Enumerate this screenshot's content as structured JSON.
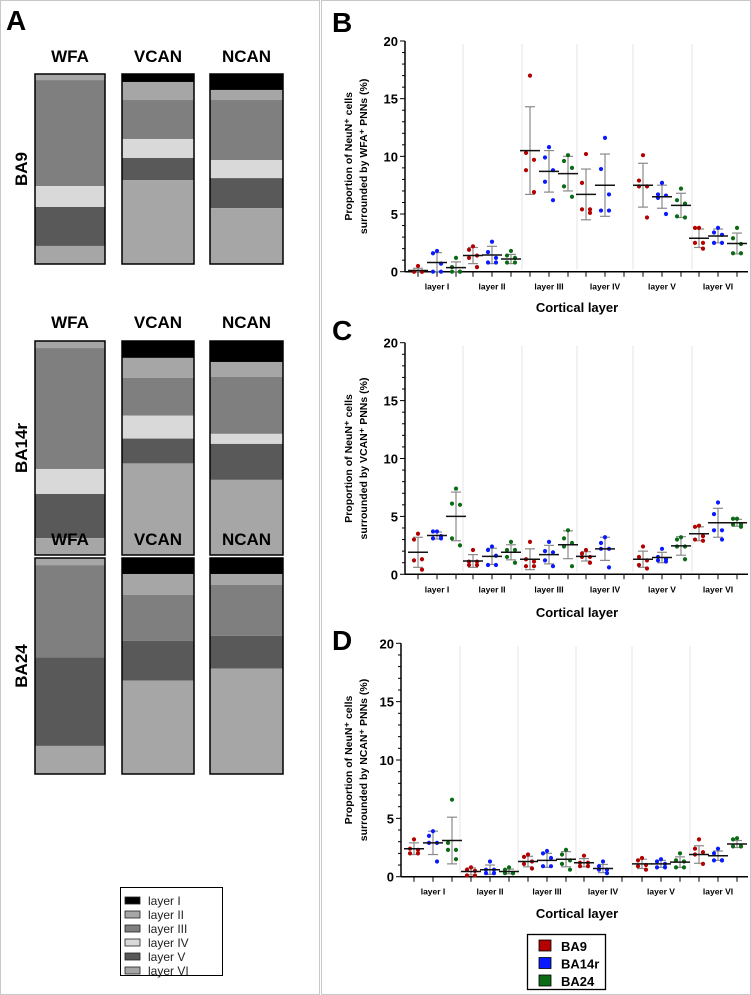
{
  "panel_a": {
    "label": "A",
    "regions": [
      {
        "name": "BA9",
        "stains": [
          {
            "name": "WFA",
            "layers": [
              [
                "layer II",
                3.2
              ],
              [
                "layer III",
                55.8
              ],
              [
                "layer IV",
                11.0
              ],
              [
                "layer V",
                20.5
              ],
              [
                "layer VI",
                9.5
              ]
            ]
          },
          {
            "name": "VCAN",
            "layers": [
              [
                "layer I",
                4.2
              ],
              [
                "layer II",
                9.5
              ],
              [
                "layer III",
                20.5
              ],
              [
                "layer IV",
                10.0
              ],
              [
                "layer V",
                11.6
              ],
              [
                "layer VI",
                44.2
              ]
            ]
          },
          {
            "name": "NCAN",
            "layers": [
              [
                "layer I",
                8.4
              ],
              [
                "layer II",
                5.3
              ],
              [
                "layer III",
                31.6
              ],
              [
                "layer IV",
                9.5
              ],
              [
                "layer V",
                15.8
              ],
              [
                "layer VI",
                29.4
              ]
            ]
          }
        ]
      },
      {
        "name": "BA14r",
        "stains": [
          {
            "name": "WFA",
            "layers": [
              [
                "layer II",
                3.3
              ],
              [
                "layer III",
                56.5
              ],
              [
                "layer IV",
                11.7
              ],
              [
                "layer V",
                20.6
              ],
              [
                "layer VI",
                7.9
              ]
            ]
          },
          {
            "name": "VCAN",
            "layers": [
              [
                "layer I",
                7.9
              ],
              [
                "layer II",
                9.3
              ],
              [
                "layer III",
                17.7
              ],
              [
                "layer IV",
                10.7
              ],
              [
                "layer V",
                11.6
              ],
              [
                "layer VI",
                42.8
              ]
            ]
          },
          {
            "name": "NCAN",
            "layers": [
              [
                "layer I",
                9.8
              ],
              [
                "layer II",
                7.0
              ],
              [
                "layer III",
                26.6
              ],
              [
                "layer IV",
                4.7
              ],
              [
                "layer V",
                16.8
              ],
              [
                "layer VI",
                35.1
              ]
            ]
          }
        ]
      },
      {
        "name": "BA24",
        "stains": [
          {
            "name": "WFA",
            "layers": [
              [
                "layer II",
                3.3
              ],
              [
                "layer III",
                42.8
              ],
              [
                "layer V",
                40.9
              ],
              [
                "layer VI",
                13.0
              ]
            ]
          },
          {
            "name": "VCAN",
            "layers": [
              [
                "layer I",
                7.4
              ],
              [
                "layer II",
                9.7
              ],
              [
                "layer III",
                21.2
              ],
              [
                "layer V",
                18.4
              ],
              [
                "layer VI",
                43.3
              ]
            ]
          },
          {
            "name": "NCAN",
            "layers": [
              [
                "layer I",
                7.4
              ],
              [
                "layer II",
                5.1
              ],
              [
                "layer III",
                23.5
              ],
              [
                "layer V",
                15.2
              ],
              [
                "layer VI",
                48.8
              ]
            ]
          }
        ]
      }
    ],
    "legend": [
      {
        "label": "layer I",
        "color": "#000000"
      },
      {
        "label": "layer II",
        "color": "#a6a6a6"
      },
      {
        "label": "layer III",
        "color": "#7f7f7f"
      },
      {
        "label": "layer IV",
        "color": "#d9d9d9"
      },
      {
        "label": "layer V",
        "color": "#595959"
      },
      {
        "label": "layer VI",
        "color": "#a6a6a6"
      }
    ]
  },
  "legend_regions": [
    {
      "label": "BA9",
      "color": "#b30000"
    },
    {
      "label": "BA14r",
      "color": "#0a1aff"
    },
    {
      "label": "BA24",
      "color": "#0a6b14"
    }
  ],
  "chart_data": [
    {
      "panel": "B",
      "type": "scatter",
      "ylabel_line1": "Proportion of NeuN⁺ cells",
      "ylabel_line2": "surrounded by WFA⁺ PNNs (%)",
      "xlabel": "Cortical layer",
      "categories": [
        "layer I",
        "layer II",
        "layer III",
        "layer IV",
        "layer V",
        "layer VI"
      ],
      "ylim": [
        0,
        20
      ],
      "yticks": [
        0,
        5,
        10,
        15,
        20
      ],
      "series": [
        {
          "name": "BA9",
          "groups": [
            {
              "mean": 0.1,
              "sd": 0.2,
              "points": [
                0.5,
                0,
                0,
                0,
                0
              ]
            },
            {
              "mean": 1.4,
              "sd": 0.7,
              "points": [
                2.2,
                1.9,
                1.4,
                1.2,
                0.4
              ]
            },
            {
              "mean": 10.5,
              "sd": 3.8,
              "points": [
                17,
                10.3,
                9.7,
                8.8,
                6.9
              ]
            },
            {
              "mean": 6.7,
              "sd": 2.2,
              "points": [
                10.2,
                7.7,
                5.4,
                5.4,
                5.1
              ]
            },
            {
              "mean": 7.5,
              "sd": 1.9,
              "points": [
                10.1,
                7.9,
                7.4,
                7.4,
                4.7
              ]
            },
            {
              "mean": 2.9,
              "sd": 0.8,
              "points": [
                3.8,
                3.8,
                2.5,
                2.5,
                2.0
              ]
            }
          ]
        },
        {
          "name": "BA14r",
          "groups": [
            {
              "mean": 0.8,
              "sd": 0.85,
              "points": [
                1.8,
                1.6,
                0.7,
                0,
                0
              ]
            },
            {
              "mean": 1.45,
              "sd": 0.75,
              "points": [
                2.6,
                1.7,
                1.2,
                0.8,
                0.8
              ]
            },
            {
              "mean": 8.7,
              "sd": 1.8,
              "points": [
                10.8,
                9.9,
                8.8,
                7.8,
                6.2
              ]
            },
            {
              "mean": 7.5,
              "sd": 2.7,
              "points": [
                11.6,
                8.9,
                6.7,
                5.3,
                5.3
              ]
            },
            {
              "mean": 6.5,
              "sd": 1.0,
              "points": [
                7.7,
                6.7,
                6.6,
                6.4,
                5.0
              ]
            },
            {
              "mean": 3.1,
              "sd": 0.6,
              "points": [
                3.8,
                3.4,
                3.2,
                2.5,
                2.5
              ]
            }
          ]
        },
        {
          "name": "BA24",
          "groups": [
            {
              "mean": 0.35,
              "sd": 0.5,
              "points": [
                1.2,
                0.4,
                0,
                0,
                0
              ]
            },
            {
              "mean": 1.1,
              "sd": 0.4,
              "points": [
                1.8,
                1.4,
                1.2,
                0.8,
                0.8
              ]
            },
            {
              "mean": 8.5,
              "sd": 1.5,
              "points": [
                10.1,
                9.6,
                9.0,
                7.4,
                6.5
              ]
            },
            null,
            {
              "mean": 5.75,
              "sd": 1.05,
              "points": [
                7.2,
                6.2,
                5.9,
                4.8,
                4.7
              ]
            },
            {
              "mean": 2.45,
              "sd": 0.9,
              "points": [
                3.8,
                2.9,
                2.4,
                1.6,
                1.6
              ]
            }
          ]
        }
      ]
    },
    {
      "panel": "C",
      "type": "scatter",
      "ylabel_line1": "Proportion of NeuN⁺ cells",
      "ylabel_line2": "surrounded by VCAN⁺ PNNs (%)",
      "xlabel": "Cortical layer",
      "categories": [
        "layer I",
        "layer II",
        "layer III",
        "layer IV",
        "layer V",
        "layer VI"
      ],
      "ylim": [
        0,
        20
      ],
      "yticks": [
        0,
        5,
        10,
        15,
        20
      ],
      "series": [
        {
          "name": "BA9",
          "groups": [
            {
              "mean": 1.9,
              "sd": 1.3,
              "points": [
                3.5,
                3.0,
                1.3,
                1.2,
                0.4
              ]
            },
            {
              "mean": 1.15,
              "sd": 0.55,
              "points": [
                2.1,
                1.1,
                1.1,
                0.8,
                0.8
              ]
            },
            {
              "mean": 1.3,
              "sd": 0.9,
              "points": [
                2.8,
                1.3,
                1.1,
                0.7,
                0.7
              ]
            },
            {
              "mean": 1.55,
              "sd": 0.4,
              "points": [
                2.1,
                1.8,
                1.5,
                1.5,
                1.0
              ]
            },
            {
              "mean": 1.3,
              "sd": 0.7,
              "points": [
                2.4,
                1.5,
                1.2,
                0.8,
                0.5
              ]
            },
            {
              "mean": 3.5,
              "sd": 0.6,
              "points": [
                4.2,
                4.1,
                3.3,
                3.0,
                2.9
              ]
            }
          ]
        },
        {
          "name": "BA14r",
          "groups": [
            {
              "mean": 3.35,
              "sd": 0.3,
              "points": [
                3.7,
                3.7,
                3.3,
                3.1,
                3.1
              ]
            },
            {
              "mean": 1.55,
              "sd": 0.7,
              "points": [
                2.4,
                2.1,
                1.6,
                0.8,
                0.8
              ]
            },
            {
              "mean": 1.7,
              "sd": 0.8,
              "points": [
                2.8,
                2.0,
                1.9,
                1.2,
                0.7
              ]
            },
            {
              "mean": 2.2,
              "sd": 1.0,
              "points": [
                3.2,
                2.7,
                2.2,
                2.2,
                0.6
              ]
            },
            {
              "mean": 1.45,
              "sd": 0.45,
              "points": [
                2.2,
                1.5,
                1.3,
                1.2,
                1.1
              ]
            },
            {
              "mean": 4.45,
              "sd": 1.25,
              "points": [
                6.2,
                5.2,
                3.8,
                3.8,
                3.0
              ]
            }
          ]
        },
        {
          "name": "BA24",
          "groups": [
            {
              "mean": 5.0,
              "sd": 2.1,
              "points": [
                7.4,
                6.1,
                6.0,
                3.1,
                2.5
              ]
            },
            {
              "mean": 1.9,
              "sd": 0.65,
              "points": [
                2.8,
                2.1,
                2.1,
                1.5,
                1.0
              ]
            },
            {
              "mean": 2.55,
              "sd": 1.2,
              "points": [
                3.8,
                3.1,
                2.7,
                2.4,
                0.7
              ]
            },
            null,
            {
              "mean": 2.45,
              "sd": 0.8,
              "points": [
                3.2,
                3.0,
                2.4,
                2.4,
                1.3
              ]
            },
            {
              "mean": 4.45,
              "sd": 0.3,
              "points": [
                4.8,
                4.8,
                4.3,
                4.3,
                4.1
              ]
            }
          ]
        }
      ]
    },
    {
      "panel": "D",
      "type": "scatter",
      "ylabel_line1": "Proportion of NeuN⁺ cells",
      "ylabel_line2": "surrounded by NCAN⁺ PNNs (%)",
      "xlabel": "Cortical layer",
      "categories": [
        "layer I",
        "layer II",
        "layer III",
        "layer IV",
        "layer V",
        "layer VI"
      ],
      "ylim": [
        0,
        20
      ],
      "yticks": [
        0,
        5,
        10,
        15,
        20
      ],
      "series": [
        {
          "name": "BA9",
          "groups": [
            {
              "mean": 2.4,
              "sd": 0.5,
              "points": [
                3.2,
                2.4,
                2.3,
                2.0,
                2.0
              ]
            },
            {
              "mean": 0.45,
              "sd": 0.3,
              "points": [
                0.8,
                0.6,
                0.5,
                0.1,
                0.1
              ]
            },
            {
              "mean": 1.3,
              "sd": 0.45,
              "points": [
                1.9,
                1.7,
                1.3,
                1.1,
                0.7
              ]
            },
            {
              "mean": 1.2,
              "sd": 0.35,
              "points": [
                1.8,
                1.2,
                1.2,
                0.9,
                0.9
              ]
            },
            {
              "mean": 1.1,
              "sd": 0.4,
              "points": [
                1.6,
                1.4,
                1.0,
                0.9,
                0.6
              ]
            },
            {
              "mean": 1.9,
              "sd": 0.75,
              "points": [
                3.2,
                2.4,
                2.1,
                1.9,
                1.1
              ]
            }
          ]
        },
        {
          "name": "BA14r",
          "groups": [
            {
              "mean": 2.9,
              "sd": 1.0,
              "points": [
                3.9,
                3.5,
                2.9,
                2.9,
                1.3
              ]
            },
            {
              "mean": 0.6,
              "sd": 0.4,
              "points": [
                1.3,
                0.6,
                0.6,
                0.3,
                0.3
              ]
            },
            {
              "mean": 1.4,
              "sd": 0.6,
              "points": [
                2.2,
                2.0,
                1.6,
                0.9,
                0.9
              ]
            },
            {
              "mean": 0.7,
              "sd": 0.35,
              "points": [
                1.3,
                0.9,
                0.6,
                0.6,
                0.3
              ]
            },
            {
              "mean": 1.1,
              "sd": 0.3,
              "points": [
                1.5,
                1.3,
                1.1,
                0.8,
                0.8
              ]
            },
            {
              "mean": 1.8,
              "sd": 0.4,
              "points": [
                2.4,
                2.0,
                1.4,
                1.4,
                1.4
              ]
            }
          ]
        },
        {
          "name": "BA24",
          "groups": [
            {
              "mean": 3.1,
              "sd": 2.0,
              "points": [
                6.6,
                2.9,
                2.3,
                2.3,
                1.5
              ]
            },
            {
              "mean": 0.45,
              "sd": 0.2,
              "points": [
                0.8,
                0.6,
                0.3,
                0.3,
                0.3
              ]
            },
            {
              "mean": 1.5,
              "sd": 0.65,
              "points": [
                2.3,
                1.9,
                1.4,
                1.1,
                0.6
              ]
            },
            null,
            {
              "mean": 1.25,
              "sd": 0.45,
              "points": [
                2.0,
                1.4,
                1.3,
                0.8,
                0.8
              ]
            },
            {
              "mean": 2.8,
              "sd": 0.3,
              "points": [
                3.3,
                3.2,
                2.6,
                2.6,
                2.6
              ]
            }
          ]
        }
      ]
    }
  ]
}
